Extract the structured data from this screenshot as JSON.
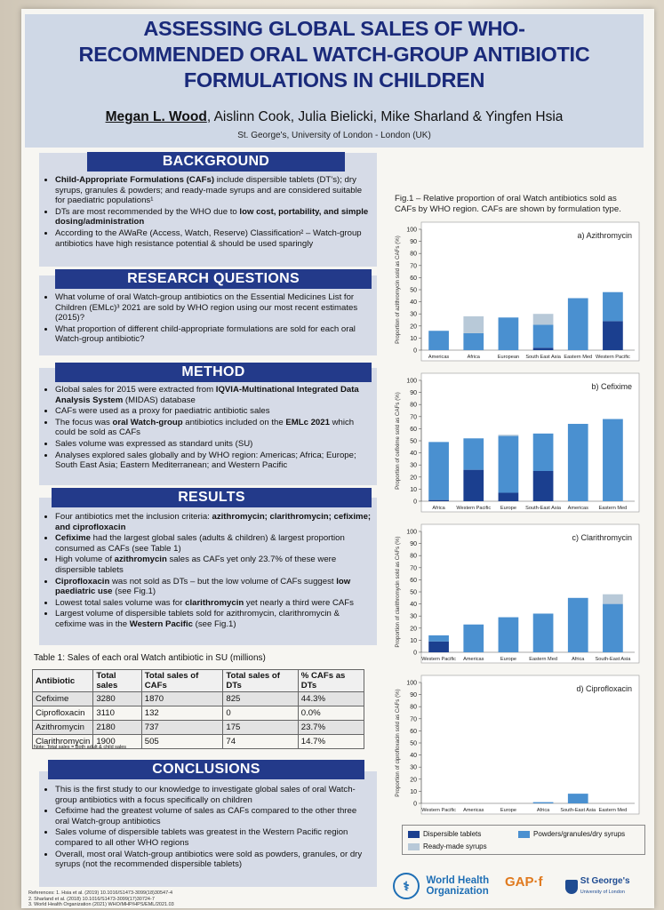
{
  "header": {
    "title_lines": [
      "ASSESSING GLOBAL SALES OF WHO-",
      "RECOMMENDED ORAL WATCH-GROUP ANTIBIOTIC",
      "FORMULATIONS IN CHILDREN"
    ],
    "lead_author": "Megan L. Wood",
    "coauthors": ", Aislinn Cook, Julia Bielicki, Mike Sharland & Yingfen Hsia",
    "affiliation": "St. George's, University of London - London (UK)"
  },
  "background": {
    "heading": "BACKGROUND",
    "b1_bold": "Child-Appropriate Formulations (CAFs)",
    "b1_text": " include dispersible tablets (DT’s); dry syrups, granules & powders; and ready-made syrups and are considered suitable for paediatric populations¹",
    "b2_text": "DTs are most recommended by the WHO due to ",
    "b2_bold": "low cost, portability, and simple dosing/administration",
    "b3_text": "According to the AWaRe (Access, Watch, Reserve) Classification² – Watch-group antibiotics have high resistance potential & should be used sparingly"
  },
  "research": {
    "heading": "RESEARCH QUESTIONS",
    "q1": "What volume of oral Watch-group antibiotics on the Essential Medicines List for Children (EMLc)³ 2021 are sold by WHO region using our most recent estimates (2015)?",
    "q2": "What proportion of different child-appropriate formulations are sold for each oral Watch-group antibiotic?"
  },
  "method": {
    "heading": "METHOD",
    "m1_text": "Global sales for 2015 were extracted from ",
    "m1_bold": "IQVIA-Multinational Integrated Data Analysis System",
    "m1_tail": " (MIDAS) database",
    "m2": "CAFs were used as a proxy for paediatric antibiotic sales",
    "m3_a": "The focus was ",
    "m3_b": "oral Watch-group",
    "m3_c": " antibiotics included on the ",
    "m3_d": "EMLc 2021",
    "m3_e": " which could be sold as CAFs",
    "m4": "Sales volume was expressed as standard units (SU)",
    "m5": "Analyses explored sales globally and by WHO region: Americas; Africa; Europe; South East Asia; Eastern Mediterranean; and Western Pacific"
  },
  "results": {
    "heading": "RESULTS",
    "r1_a": "Four antibiotics met the inclusion criteria: ",
    "r1_b": "azithromycin; clarithromycin; cefixime; and ciprofloxacin",
    "r2_a": "Cefixime",
    "r2_b": " had the largest global sales (adults & children) & largest proportion consumed as CAFs (see Table 1)",
    "r3_a": "High volume of ",
    "r3_b": "azithromycin",
    "r3_c": " sales as CAFs yet only 23.7% of these were dispersible tablets",
    "r4_a": "Ciprofloxacin",
    "r4_b": " was not sold as DTs – but the low volume of CAFs suggest ",
    "r4_c": "low paediatric use",
    "r4_d": " (see Fig.1)",
    "r5_a": "Lowest total sales volume was for ",
    "r5_b": "clarithromycin",
    "r5_c": " yet nearly a third were CAFs",
    "r6_a": "Largest volume of dispersible tablets sold for azithromycin, clarithromycin & cefixime was in the ",
    "r6_b": "Western Pacific",
    "r6_c": " (see Fig.1)"
  },
  "table": {
    "caption": "Table 1: Sales of each oral Watch antibiotic in SU (millions)",
    "headers": [
      "Antibiotic",
      "Total sales",
      "Total sales of CAFs",
      "Total sales of DTs",
      "% CAFs as DTs"
    ],
    "rows": [
      [
        "Cefixime",
        "3280",
        "1870",
        "825",
        "44.3%"
      ],
      [
        "Ciprofloxacin",
        "3110",
        "132",
        "0",
        "0.0%"
      ],
      [
        "Azithromycin",
        "2180",
        "737",
        "175",
        "23.7%"
      ],
      [
        "Clarithromycin",
        "1900",
        "505",
        "74",
        "14.7%"
      ]
    ],
    "note": "Note: Total sales = Both adult & child sales"
  },
  "conclusions": {
    "heading": "CONCLUSIONS",
    "c1": "This is the first study to our knowledge to investigate global sales of oral Watch-group antibiotics with a focus specifically on children",
    "c2": "Cefixime had the greatest volume of sales as CAFs compared to the other three oral Watch-group antibiotics",
    "c3": "Sales volume of dispersible tablets was greatest in the Western Pacific region compared to all other WHO regions",
    "c4": "Overall, most oral Watch-group antibiotics were sold as powders, granules, or dry syrups (not the recommended dispersible tablets)"
  },
  "references": {
    "r1": "References: 1. Hsia et al. (2019) 10.1016/S1473-3099(18)30547-4",
    "r2": "2. Sharland et al. (2018) 10.1016/S1473-3099(17)30724-7",
    "r3": "3. World Health Organization (2021) WHO/MHP/HPS/EML/2021.03"
  },
  "figure": {
    "title": "Fig.1 – Relative proportion of oral Watch antibiotics sold as CAFs by WHO region. CAFs are shown by formulation type.",
    "colors": {
      "dt": "#1b3f8f",
      "pow": "#4a90d0",
      "syr": "#b8c9d8"
    }
  },
  "chart_data": [
    {
      "type": "bar",
      "stacked": true,
      "title": "a) Azithromycin",
      "ylabel": "Proportion of azithromycin sold as CAFs (%)",
      "ylim": [
        0,
        100
      ],
      "yticks": [
        0,
        10,
        20,
        30,
        40,
        50,
        60,
        70,
        80,
        90,
        100
      ],
      "categories": [
        "Americas",
        "Africa",
        "European",
        "South East Asia",
        "Eastern Med",
        "Western Pacific"
      ],
      "series": [
        {
          "name": "Dispersible tablets",
          "values": [
            0,
            0,
            0,
            2,
            0,
            24
          ]
        },
        {
          "name": "Powders/granules/dry syrups",
          "values": [
            16,
            14,
            27,
            19,
            43,
            24
          ]
        },
        {
          "name": "Ready-made syrups",
          "values": [
            0,
            14,
            0,
            9,
            0,
            0
          ]
        }
      ]
    },
    {
      "type": "bar",
      "stacked": true,
      "title": "b) Cefixime",
      "ylabel": "Proportion of cefixime sold as CAFs (%)",
      "ylim": [
        0,
        100
      ],
      "yticks": [
        0,
        10,
        20,
        30,
        40,
        50,
        60,
        70,
        80,
        90,
        100
      ],
      "categories": [
        "Africa",
        "Western Pacific",
        "Europe",
        "South-East Asia",
        "Americas",
        "Eastern Med"
      ],
      "series": [
        {
          "name": "Dispersible tablets",
          "values": [
            1,
            26,
            7,
            25,
            0,
            0
          ]
        },
        {
          "name": "Powders/granules/dry syrups",
          "values": [
            48,
            26,
            47,
            31,
            64,
            68
          ]
        },
        {
          "name": "Ready-made syrups",
          "values": [
            0,
            0,
            1,
            0,
            0,
            0
          ]
        }
      ]
    },
    {
      "type": "bar",
      "stacked": true,
      "title": "c) Clarithromycin",
      "ylabel": "Proportion of clarithromycin sold as CAFs (%)",
      "ylim": [
        0,
        100
      ],
      "yticks": [
        0,
        10,
        20,
        30,
        40,
        50,
        60,
        70,
        80,
        90,
        100
      ],
      "categories": [
        "Western Pacific",
        "Americas",
        "Europe",
        "Eastern Med",
        "Africa",
        "South-East Asia"
      ],
      "series": [
        {
          "name": "Dispersible tablets",
          "values": [
            9,
            0,
            0,
            0,
            0,
            0
          ]
        },
        {
          "name": "Powders/granules/dry syrups",
          "values": [
            5,
            23,
            29,
            32,
            45,
            40
          ]
        },
        {
          "name": "Ready-made syrups",
          "values": [
            0,
            0,
            0,
            0,
            0,
            8
          ]
        }
      ]
    },
    {
      "type": "bar",
      "stacked": true,
      "title": "d) Ciprofloxacin",
      "ylabel": "Proportion of ciprofloxacin sold as CAFs (%)",
      "ylim": [
        0,
        100
      ],
      "yticks": [
        0,
        10,
        20,
        30,
        40,
        50,
        60,
        70,
        80,
        90,
        100
      ],
      "categories": [
        "Western Pacific",
        "Americas",
        "Europe",
        "Africa",
        "South-East Asia",
        "Eastern Med"
      ],
      "series": [
        {
          "name": "Dispersible tablets",
          "values": [
            0,
            0,
            0,
            0,
            0,
            0
          ]
        },
        {
          "name": "Powders/granules/dry syrups",
          "values": [
            0,
            0,
            0,
            1,
            8,
            0
          ]
        },
        {
          "name": "Ready-made syrups",
          "values": [
            0,
            0,
            0,
            0,
            0,
            0
          ]
        }
      ]
    }
  ],
  "legend": {
    "dt": "Dispersible tablets",
    "pow": "Powders/granules/dry syrups",
    "syr": "Ready-made syrups"
  },
  "logos": {
    "who_1": "World Health",
    "who_2": "Organization",
    "gap": "GAP·f",
    "sg_1": "St George's",
    "sg_2": "University of London"
  }
}
